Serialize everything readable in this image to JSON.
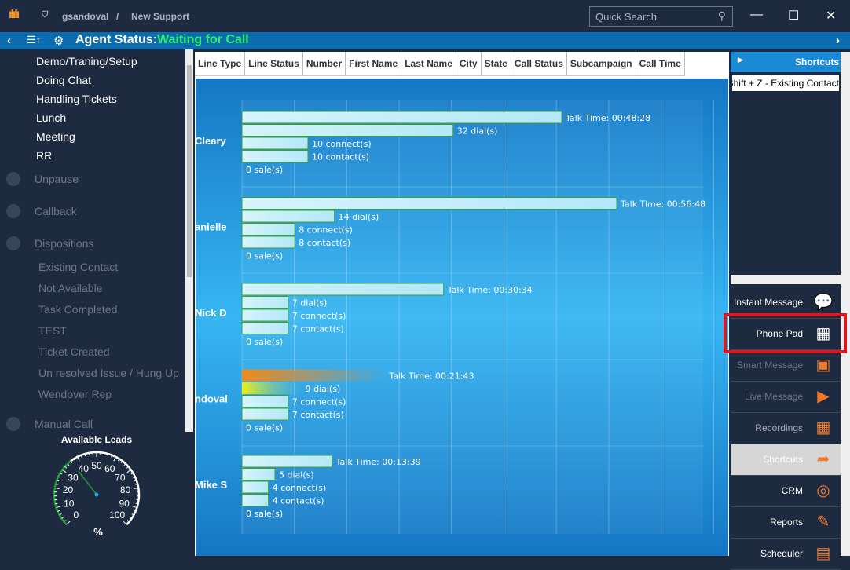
{
  "titlebar": {
    "user": "gsandoval",
    "separator": "/",
    "campaign": "New Support",
    "search_placeholder": "Quick Search",
    "minimize": "—",
    "maximize": "☐",
    "close": "✕"
  },
  "status": {
    "label": "Agent Status:",
    "value": "Waiting for Call"
  },
  "left": {
    "items": [
      {
        "label": "Demo/Traning/Setup",
        "style": "item"
      },
      {
        "label": "Doing Chat",
        "style": "item"
      },
      {
        "label": "Handling Tickets",
        "style": "item"
      },
      {
        "label": "Lunch",
        "style": "item"
      },
      {
        "label": "Meeting",
        "style": "item"
      },
      {
        "label": "RR",
        "style": "item"
      },
      {
        "label": "Unpause",
        "style": "sec"
      },
      {
        "label": "Callback",
        "style": "sec"
      },
      {
        "label": "Dispositions",
        "style": "sec"
      },
      {
        "label": "Existing Contact",
        "style": "dim"
      },
      {
        "label": "Not Available",
        "style": "dim"
      },
      {
        "label": "Task Completed",
        "style": "dim"
      },
      {
        "label": "TEST",
        "style": "dim"
      },
      {
        "label": "Ticket Created",
        "style": "dim"
      },
      {
        "label": "Un resolved Issue / Hung Up",
        "style": "dim"
      },
      {
        "label": "Wendover Rep",
        "style": "dim"
      },
      {
        "label": "Manual Call",
        "style": "sec"
      }
    ],
    "gauge": {
      "title": "Available Leads",
      "unit": "%",
      "value": 36,
      "ticks": [
        "0",
        "10",
        "20",
        "30",
        "40",
        "50",
        "60",
        "70",
        "80",
        "90",
        "100"
      ]
    }
  },
  "table": {
    "columns": [
      "Line Type",
      "Line Status",
      "Number",
      "First Name",
      "Last Name",
      "City",
      "State",
      "Call Status",
      "Subcampaign",
      "Call Time"
    ]
  },
  "chart_data": {
    "type": "bar",
    "orientation": "horizontal",
    "agents": [
      {
        "name": "Cleary",
        "talk_time": "00:48:28",
        "talk_seconds": 2908,
        "dials": 32,
        "connects": 10,
        "contacts": 10,
        "sales": 0
      },
      {
        "name": "anielle",
        "talk_time": "00:56:48",
        "talk_seconds": 3408,
        "dials": 14,
        "connects": 8,
        "contacts": 8,
        "sales": 0
      },
      {
        "name": "Nick D",
        "talk_time": "00:30:34",
        "talk_seconds": 1834,
        "dials": 7,
        "connects": 7,
        "contacts": 7,
        "sales": 0
      },
      {
        "name": "ndoval",
        "talk_time": "00:21:43",
        "talk_seconds": 1303,
        "dials": 9,
        "connects": 7,
        "contacts": 7,
        "sales": 0,
        "highlight": true
      },
      {
        "name": "Mike S",
        "talk_time": "00:13:39",
        "talk_seconds": 819,
        "dials": 5,
        "connects": 4,
        "contacts": 4,
        "sales": 0
      }
    ],
    "labels": {
      "talk": "Talk Time: ",
      "dial": " dial(s)",
      "connect": " connect(s)",
      "contact": " contact(s)",
      "sale": " sale(s)"
    }
  },
  "right": {
    "shortcuts_title": "Shortcuts",
    "shortcut_item": "Shift + Z - Existing Contact",
    "buttons": [
      {
        "label": "Instant Message",
        "icon": "chat-icon",
        "state": "normal"
      },
      {
        "label": "Phone Pad",
        "icon": "phone-pad-icon",
        "state": "normal"
      },
      {
        "label": "Smart Message",
        "icon": "smart-message-icon",
        "state": "dim"
      },
      {
        "label": "Live Message",
        "icon": "play-icon",
        "state": "dim"
      },
      {
        "label": "Recordings",
        "icon": "recordings-icon",
        "state": "normal-dim"
      },
      {
        "label": "Shortcuts",
        "icon": "shortcut-arrow-icon",
        "state": "selected"
      },
      {
        "label": "CRM",
        "icon": "crm-icon",
        "state": "normal"
      },
      {
        "label": "Reports",
        "icon": "reports-icon",
        "state": "normal"
      },
      {
        "label": "Scheduler",
        "icon": "calendar-icon",
        "state": "normal"
      }
    ]
  },
  "colors": {
    "accent": "#0b6cb0",
    "status_green": "#2ff06a",
    "highlight_red": "#e3141c",
    "icon_orange": "#f07a2a"
  }
}
